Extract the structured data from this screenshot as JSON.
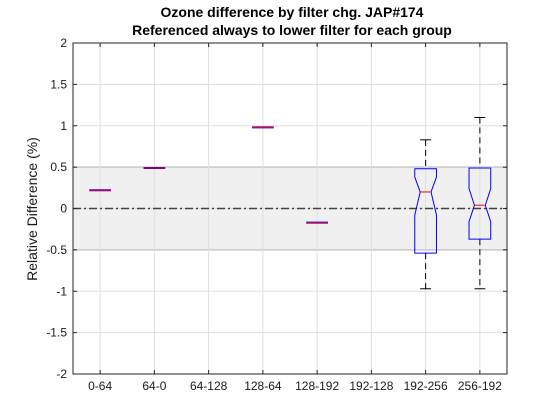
{
  "chart_data": {
    "type": "box",
    "title": "Ozone difference by filter chg. JAP#174",
    "subtitle": "Referenced always to lower filter for each group",
    "xlabel": "",
    "ylabel": "Relative Difference (%)",
    "ylim": [
      -2,
      2
    ],
    "yticks": [
      -2,
      -1.5,
      -1,
      -0.5,
      0,
      0.5,
      1,
      1.5,
      2
    ],
    "ytick_labels": [
      "-2",
      "-1.5",
      "-1",
      "-0.5",
      "0",
      "0.5",
      "1",
      "1.5",
      "2"
    ],
    "grid": true,
    "categories": [
      "0-64",
      "64-0",
      "64-128",
      "128-64",
      "128-192",
      "192-128",
      "192-256",
      "256-192"
    ],
    "boxes": [
      {
        "category": "0-64",
        "median": 0.22,
        "q1": 0.22,
        "q3": 0.22,
        "whisker_low": 0.22,
        "whisker_high": 0.22,
        "notched": false
      },
      {
        "category": "64-0",
        "median": 0.49,
        "q1": 0.49,
        "q3": 0.49,
        "whisker_low": 0.49,
        "whisker_high": 0.49,
        "notched": false
      },
      {
        "category": "128-64",
        "median": 0.98,
        "q1": 0.98,
        "q3": 0.98,
        "whisker_low": 0.98,
        "whisker_high": 0.98,
        "notched": false
      },
      {
        "category": "128-192",
        "median": -0.17,
        "q1": -0.17,
        "q3": -0.17,
        "whisker_low": -0.17,
        "whisker_high": -0.17,
        "notched": false
      },
      {
        "category": "192-256",
        "median": 0.2,
        "q1": -0.54,
        "q3": 0.48,
        "whisker_low": -0.97,
        "whisker_high": 0.83,
        "notch_low": -0.08,
        "notch_high": 0.38,
        "notched": true
      },
      {
        "category": "256-192",
        "median": 0.04,
        "q1": -0.37,
        "q3": 0.49,
        "whisker_low": -0.97,
        "whisker_high": 1.1,
        "notch_low": -0.16,
        "notch_high": 0.24,
        "notched": true
      }
    ],
    "reference_band": {
      "low": -0.5,
      "high": 0.5,
      "color": "#f0f0f0"
    },
    "reference_line": {
      "y": 0,
      "style": "dash-dot",
      "color": "#404040"
    },
    "colors": {
      "box": "#0000ff",
      "median": "#ff0000",
      "whisker": "#000000",
      "grid": "#dfdfdf",
      "axis": "#262626"
    }
  }
}
